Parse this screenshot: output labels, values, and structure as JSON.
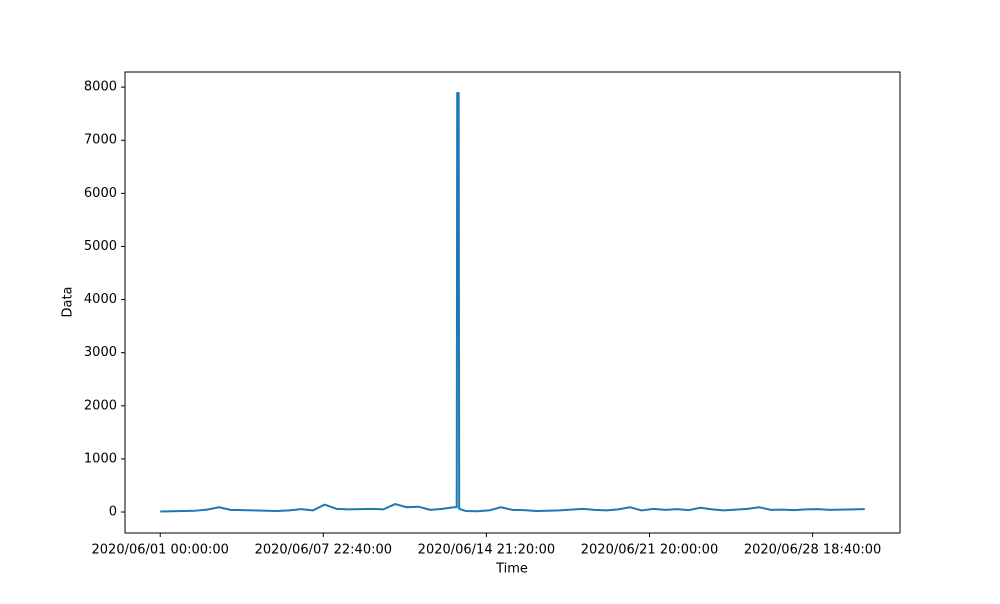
{
  "chart_data": {
    "type": "line",
    "x_label": "Time",
    "y_label": "Data",
    "x": [
      "2020/06/01 00:00",
      "2020/06/01 12:00",
      "2020/06/02 00:00",
      "2020/06/02 12:00",
      "2020/06/03 00:00",
      "2020/06/03 12:00",
      "2020/06/04 00:00",
      "2020/06/04 12:00",
      "2020/06/05 00:00",
      "2020/06/05 12:00",
      "2020/06/06 00:00",
      "2020/06/06 12:00",
      "2020/06/07 00:00",
      "2020/06/07 12:00",
      "2020/06/08 00:00",
      "2020/06/08 12:00",
      "2020/06/09 00:00",
      "2020/06/09 12:00",
      "2020/06/10 00:00",
      "2020/06/10 12:00",
      "2020/06/11 00:00",
      "2020/06/11 12:00",
      "2020/06/12 00:00",
      "2020/06/12 12:00",
      "2020/06/13 00:00",
      "2020/06/13 12:00",
      "2020/06/13 15:00",
      "2020/06/13 15:30",
      "2020/06/13 17:00",
      "2020/06/13 17:30",
      "2020/06/14 00:00",
      "2020/06/14 12:00",
      "2020/06/15 00:00",
      "2020/06/15 12:00",
      "2020/06/16 00:00",
      "2020/06/16 12:00",
      "2020/06/17 00:00",
      "2020/06/17 12:00",
      "2020/06/18 00:00",
      "2020/06/18 12:00",
      "2020/06/19 00:00",
      "2020/06/19 12:00",
      "2020/06/20 00:00",
      "2020/06/20 12:00",
      "2020/06/21 00:00",
      "2020/06/21 12:00",
      "2020/06/22 00:00",
      "2020/06/22 12:00",
      "2020/06/23 00:00",
      "2020/06/23 12:00",
      "2020/06/24 00:00",
      "2020/06/24 12:00",
      "2020/06/25 00:00",
      "2020/06/25 12:00",
      "2020/06/26 00:00",
      "2020/06/26 12:00",
      "2020/06/27 00:00",
      "2020/06/27 12:00",
      "2020/06/28 00:00",
      "2020/06/28 12:00",
      "2020/06/29 00:00",
      "2020/06/29 12:00",
      "2020/06/30 00:00",
      "2020/06/30 12:00",
      "2020/07/01 00:00"
    ],
    "series": [
      {
        "name": "Data",
        "color": "#1f77b4",
        "values": [
          10,
          15,
          20,
          25,
          45,
          90,
          40,
          35,
          30,
          25,
          20,
          30,
          55,
          30,
          140,
          60,
          50,
          55,
          60,
          50,
          150,
          90,
          100,
          40,
          60,
          90,
          90,
          7890,
          7890,
          60,
          20,
          15,
          30,
          90,
          40,
          35,
          20,
          25,
          30,
          45,
          60,
          40,
          30,
          50,
          90,
          30,
          60,
          40,
          55,
          35,
          80,
          50,
          30,
          45,
          60,
          90,
          40,
          45,
          35,
          50,
          55,
          40,
          45,
          50,
          55
        ]
      }
    ],
    "xlim": [
      "2020/05/30 12:00",
      "2020/07/02 12:00"
    ],
    "xticks": [
      {
        "value": "2020/06/01 00:00",
        "label": "2020/06/01 00:00:00"
      },
      {
        "value": "2020/06/07 22:40",
        "label": "2020/06/07 22:40:00"
      },
      {
        "value": "2020/06/14 21:20",
        "label": "2020/06/14 21:20:00"
      },
      {
        "value": "2020/06/21 20:00",
        "label": "2020/06/21 20:00:00"
      },
      {
        "value": "2020/06/28 18:40",
        "label": "2020/06/28 18:40:00"
      }
    ],
    "ylim": [
      -395,
      8285
    ],
    "yticks": [
      0,
      1000,
      2000,
      3000,
      4000,
      5000,
      6000,
      7000,
      8000
    ]
  }
}
